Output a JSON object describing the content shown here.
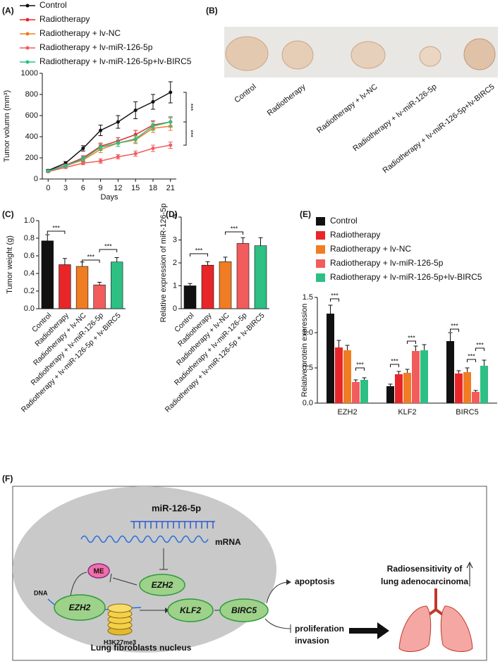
{
  "chart_data": [
    {
      "panel": "(A)",
      "type": "line",
      "x": [
        0,
        3,
        6,
        9,
        12,
        15,
        18,
        21
      ],
      "xlim": [
        -1,
        22
      ],
      "xticks": [
        0,
        3,
        6,
        9,
        12,
        15,
        18,
        21
      ],
      "ylim": [
        0,
        1000
      ],
      "yticks": [
        0,
        200,
        400,
        600,
        800,
        1000
      ],
      "x_label": "Days",
      "y_label": "Tumor volumn (mm³)",
      "series": [
        {
          "name": "Control",
          "color": "#111111",
          "values": [
            80,
            150,
            290,
            460,
            540,
            650,
            730,
            820
          ],
          "errors": [
            10,
            15,
            25,
            50,
            60,
            80,
            70,
            100
          ]
        },
        {
          "name": "Radiotherapy",
          "color": "#e8262a",
          "values": [
            75,
            130,
            200,
            310,
            360,
            420,
            510,
            540
          ],
          "errors": [
            8,
            12,
            20,
            30,
            30,
            40,
            40,
            40
          ]
        },
        {
          "name": "Radiotherapy + lv-NC",
          "color": "#f07d23",
          "values": [
            75,
            125,
            180,
            280,
            340,
            370,
            480,
            500
          ],
          "errors": [
            8,
            12,
            20,
            30,
            30,
            35,
            40,
            40
          ]
        },
        {
          "name": "Radiotherapy + lv-miR-126-5p",
          "color": "#f25c5c",
          "values": [
            70,
            110,
            150,
            170,
            210,
            240,
            290,
            320
          ],
          "errors": [
            8,
            10,
            15,
            20,
            20,
            25,
            30,
            30
          ]
        },
        {
          "name": "Radiotherapy + lv-miR-126-5p+lv-BIRC5",
          "color": "#2dbf83",
          "values": [
            75,
            125,
            190,
            300,
            340,
            380,
            500,
            540
          ],
          "errors": [
            8,
            12,
            20,
            30,
            30,
            35,
            40,
            50
          ]
        }
      ],
      "annotations": [
        "***",
        "***"
      ]
    },
    {
      "panel": "(C)",
      "type": "bar",
      "categories": [
        "Control",
        "Radiotherapy",
        "Radiotherapy + lv-NC",
        "Radiotherapy + lv-miR-126-5p",
        "Radiotherapy + lv-miR-126-5p + lv-BIRC5"
      ],
      "values": [
        0.77,
        0.5,
        0.48,
        0.27,
        0.53
      ],
      "errors": [
        0.07,
        0.07,
        0.05,
        0.03,
        0.05
      ],
      "colors": [
        "#111111",
        "#e8262a",
        "#f07d23",
        "#f25c5c",
        "#2dbf83"
      ],
      "ylim": [
        0,
        1
      ],
      "yticks": [
        {
          "value": 0,
          "label": "0.0"
        },
        0.2,
        0.4,
        0.6,
        0.8,
        {
          "value": 1,
          "label": "1.0"
        }
      ],
      "y_label": "Tumor weight (g)",
      "annotations": [
        "***",
        "***",
        "***"
      ]
    },
    {
      "panel": "(D)",
      "type": "bar",
      "categories": [
        "Control",
        "Radiotherapy",
        "Radiotherapy + lv-NC",
        "Radiotherapy + lv-miR-126-5p",
        "Radiotherapy + lv-miR-126-5p + lv-BIRC5"
      ],
      "values": [
        1.0,
        1.9,
        2.05,
        2.85,
        2.75
      ],
      "errors": [
        0.1,
        0.15,
        0.2,
        0.25,
        0.35
      ],
      "colors": [
        "#111111",
        "#e8262a",
        "#f07d23",
        "#f25c5c",
        "#2dbf83"
      ],
      "ylim": [
        0,
        4
      ],
      "yticks": [
        0,
        1,
        2,
        3,
        4
      ],
      "y_label": "Relative expression of miR-126-5p",
      "annotations": [
        "***",
        "***"
      ]
    },
    {
      "panel": "(E)",
      "type": "grouped_bar",
      "categories": [
        "EZH2",
        "KLF2",
        "BIRC5"
      ],
      "ylim": [
        0,
        1.5
      ],
      "yticks": [
        {
          "value": 0,
          "label": "0.0"
        },
        0.5,
        {
          "value": 1,
          "label": "1.0"
        },
        1.5
      ],
      "y_label": "Relative protein expression",
      "series": [
        {
          "name": "Control",
          "color": "#111111",
          "values": [
            1.27,
            0.24,
            0.88
          ],
          "errors": [
            0.12,
            0.03,
            0.12
          ]
        },
        {
          "name": "Radiotherapy",
          "color": "#e8262a",
          "values": [
            0.79,
            0.41,
            0.42
          ],
          "errors": [
            0.1,
            0.04,
            0.04
          ]
        },
        {
          "name": "Radiotherapy + lv-NC",
          "color": "#f07d23",
          "values": [
            0.75,
            0.43,
            0.44
          ],
          "errors": [
            0.07,
            0.05,
            0.06
          ]
        },
        {
          "name": "Radiotherapy + lv-miR-126-5p",
          "color": "#f25c5c",
          "values": [
            0.3,
            0.74,
            0.16
          ],
          "errors": [
            0.03,
            0.07,
            0.02
          ]
        },
        {
          "name": "Radiotherapy + lv-miR-126-5p+lv-BIRC5",
          "color": "#2dbf83",
          "values": [
            0.33,
            0.75,
            0.53
          ],
          "errors": [
            0.03,
            0.08,
            0.08
          ]
        }
      ],
      "annotations": [
        "***",
        "***",
        "***",
        "***",
        "***",
        "***",
        "***"
      ]
    }
  ],
  "panel_b": {
    "label": "(B)",
    "samples": [
      "Control",
      "Radiotherapy",
      "Radiotherapy + lv-NC",
      "Radiotherapy + lv-miR-126-5p",
      "Radiotherapy + lv-miR-126-5p+lv-BIRC5"
    ]
  },
  "panel_f": {
    "label": "(F)",
    "mirna": "miR-126-5p",
    "mrna": "mRNA",
    "ezh2_top": "EZH2",
    "me": "ME",
    "dna": "DNA",
    "ezh2_dna": "EZH2",
    "histone": "H3K27me3",
    "klf2": "KLF2",
    "birc5": "BIRC5",
    "nucleus": "Lung fibroblasts nucleus",
    "apoptosis": "apoptosis",
    "proliferation": "proliferation",
    "invasion": "invasion",
    "outcome_line1": "Radiosensitivity of",
    "outcome_line2": "lung adenocarcinoma"
  }
}
